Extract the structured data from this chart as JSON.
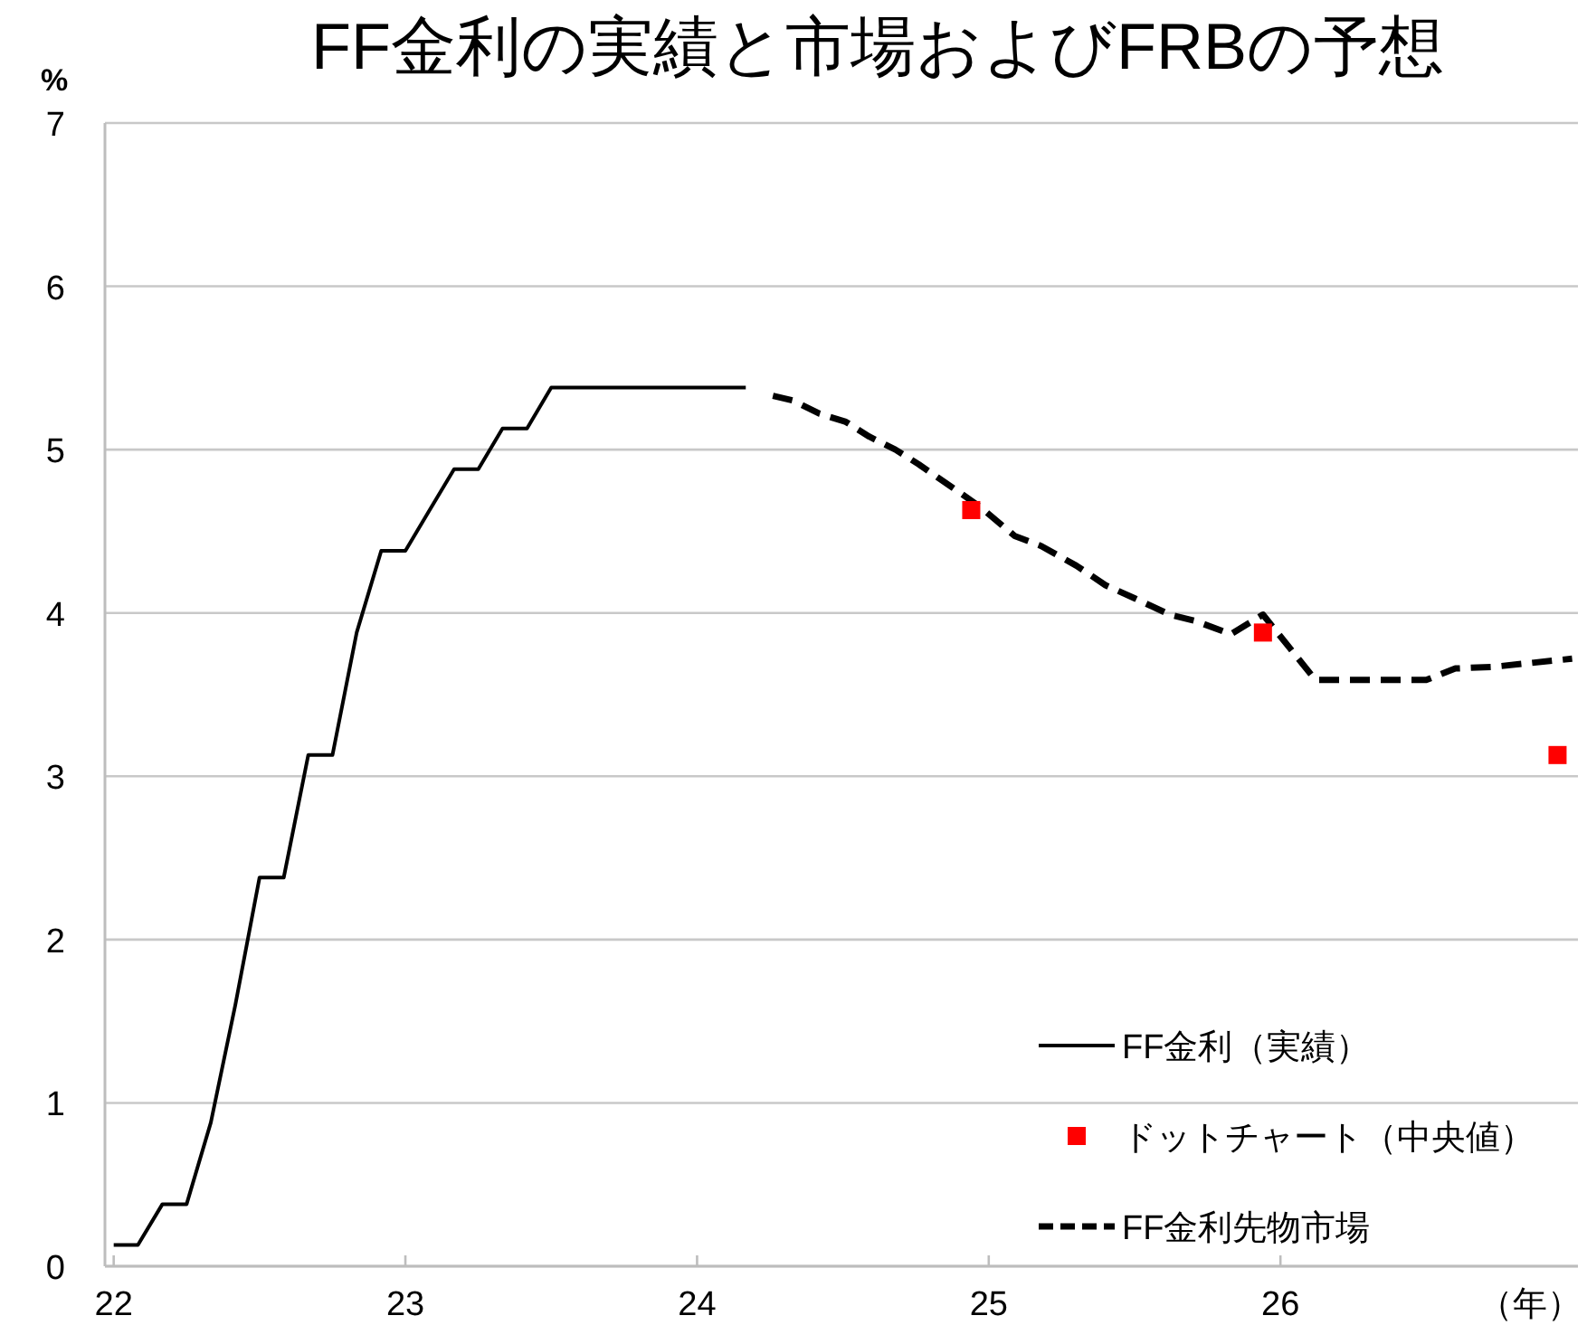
{
  "chart_data": {
    "type": "line",
    "title": "FF金利の実績と市場およびFRBの予想",
    "xlabel": "（年）",
    "ylabel": "%",
    "xlim": [
      21.97,
      27.02
    ],
    "ylim": [
      0,
      7
    ],
    "xticks": [
      22,
      23,
      24,
      25,
      26
    ],
    "yticks": [
      0,
      1,
      2,
      3,
      4,
      5,
      6,
      7
    ],
    "grid": "y",
    "legend": "bottom right",
    "series": [
      {
        "name": "FF金利（実績）",
        "color": "#000000",
        "line_style": "solid",
        "x": [
          22,
          22.083,
          22.167,
          22.25,
          22.333,
          22.417,
          22.5,
          22.583,
          22.667,
          22.75,
          22.833,
          22.917,
          23,
          23.083,
          23.167,
          23.25,
          23.333,
          23.417,
          23.5,
          23.583,
          23.667,
          23.75,
          23.833,
          23.917,
          24,
          24.083,
          24.167
        ],
        "values": [
          0.13,
          0.13,
          0.38,
          0.38,
          0.88,
          1.6,
          2.38,
          2.38,
          3.13,
          3.13,
          3.88,
          4.38,
          4.38,
          4.63,
          4.88,
          4.88,
          5.13,
          5.13,
          5.38,
          5.38,
          5.38,
          5.38,
          5.38,
          5.38,
          5.38,
          5.38,
          5.38
        ]
      },
      {
        "name": "ドットチャート（中央値）",
        "type": "scatter",
        "color": "#ff0000",
        "marker": "square",
        "x": [
          24.94,
          25.94,
          26.95
        ],
        "values": [
          4.63,
          3.88,
          3.13
        ]
      },
      {
        "name": "FF金利先物市場",
        "color": "#000000",
        "line_style": "dashed",
        "x": [
          24.26,
          24.33,
          24.42,
          24.51,
          24.59,
          24.68,
          24.76,
          24.89,
          24.97,
          25.09,
          25.18,
          25.3,
          25.4,
          25.5,
          25.62,
          25.71,
          25.83,
          25.94,
          26.12,
          26.5,
          26.6,
          26.73,
          27.0
        ],
        "values": [
          5.33,
          5.3,
          5.22,
          5.17,
          5.08,
          5.0,
          4.91,
          4.75,
          4.65,
          4.47,
          4.41,
          4.29,
          4.17,
          4.09,
          3.99,
          3.95,
          3.87,
          3.99,
          3.59,
          3.59,
          3.66,
          3.67,
          3.72
        ]
      }
    ]
  }
}
